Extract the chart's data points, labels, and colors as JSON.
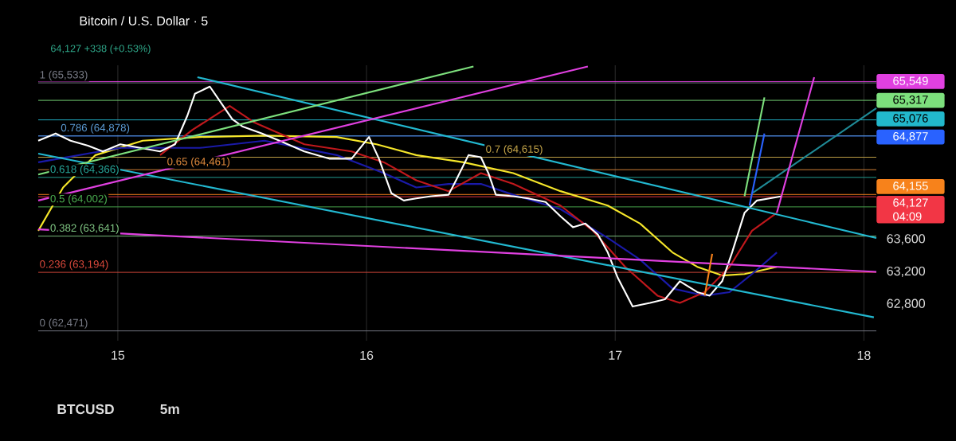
{
  "chart_data": {
    "type": "line",
    "title": "Bitcoin / U.S. Dollar · 5",
    "subtitle": "64,127 +338 (+0.53%)",
    "annotations": [
      "BTCUSD",
      "5m",
      "04:09"
    ],
    "xlim": [
      14.68,
      18.05
    ],
    "xticks": [
      15,
      16,
      17,
      18
    ],
    "ylim": [
      62350,
      65750
    ],
    "yticks": [
      {
        "value": 62800,
        "label": "62,800"
      },
      {
        "value": 63200,
        "label": "63,200"
      },
      {
        "value": 63600,
        "label": "63,600"
      }
    ],
    "grid": "x",
    "series": [
      {
        "color": "#f5e62a",
        "x": [
          14.68,
          14.78,
          14.91,
          15.1,
          15.33,
          15.59,
          15.88,
          16.04,
          16.2,
          16.39,
          16.59,
          16.78,
          16.97,
          17.1,
          17.23,
          17.33,
          17.43,
          17.52,
          17.65
        ],
        "values": [
          63707,
          64241,
          64641,
          64819,
          64864,
          64882,
          64864,
          64775,
          64641,
          64552,
          64419,
          64196,
          64018,
          63796,
          63440,
          63262,
          63155,
          63173,
          63262
        ]
      },
      {
        "color": "#1a1aa8",
        "x": [
          14.68,
          15.01,
          15.33,
          15.59,
          15.88,
          16.07,
          16.2,
          16.33,
          16.46,
          16.59,
          16.78,
          16.97,
          17.1,
          17.23,
          17.36,
          17.46,
          17.55,
          17.65
        ],
        "values": [
          64552,
          64730,
          64730,
          64819,
          64641,
          64419,
          64241,
          64285,
          64285,
          64152,
          63974,
          63618,
          63351,
          62995,
          62906,
          62950,
          63173,
          63440
        ]
      },
      {
        "color": "#c0181c",
        "x": [
          15.17,
          15.3,
          15.45,
          15.55,
          15.75,
          15.94,
          16.07,
          16.2,
          16.33,
          16.46,
          16.59,
          16.78,
          16.91,
          17.04,
          17.17,
          17.26,
          17.36,
          17.46,
          17.55,
          17.65
        ],
        "values": [
          64641,
          64953,
          65247,
          65042,
          64775,
          64686,
          64552,
          64330,
          64196,
          64419,
          64285,
          64018,
          63707,
          63262,
          62906,
          62817,
          62950,
          63262,
          63707,
          63929
        ]
      },
      {
        "color": "#ffffff",
        "x": [
          14.68,
          14.75,
          14.81,
          14.88,
          14.94,
          15.01,
          15.09,
          15.17,
          15.23,
          15.28,
          15.31,
          15.37,
          15.41,
          15.46,
          15.5,
          15.58,
          15.65,
          15.75,
          15.85,
          15.94,
          16.01,
          16.05,
          16.1,
          16.15,
          16.2,
          16.26,
          16.33,
          16.36,
          16.41,
          16.46,
          16.49,
          16.52,
          16.59,
          16.65,
          16.72,
          16.78,
          16.83,
          16.88,
          16.93,
          16.97,
          17.01,
          17.07,
          17.14,
          17.2,
          17.26,
          17.33,
          17.38,
          17.43,
          17.47,
          17.52,
          17.57,
          17.62,
          17.67
        ],
        "values": [
          64819,
          64908,
          64819,
          64757,
          64686,
          64775,
          64730,
          64686,
          64775,
          65131,
          65398,
          65487,
          65309,
          65086,
          64997,
          64908,
          64819,
          64686,
          64597,
          64597,
          64864,
          64597,
          64170,
          64081,
          64107,
          64134,
          64152,
          64330,
          64641,
          64615,
          64419,
          64152,
          64134,
          64107,
          64063,
          63885,
          63751,
          63796,
          63662,
          63440,
          63128,
          62772,
          62817,
          62861,
          63084,
          62950,
          62906,
          63084,
          63440,
          63929,
          64081,
          64107,
          64134
        ]
      },
      {
        "color": "#22b8d0",
        "x": [
          15.32,
          18.05
        ],
        "values": [
          65603,
          63618
        ]
      },
      {
        "color": "#22b8d0",
        "x": [
          14.68,
          18.04
        ],
        "values": [
          64659,
          62639
        ]
      },
      {
        "color": "#e040e0",
        "x": [
          14.68,
          18.05
        ],
        "values": [
          63725,
          63200
        ]
      },
      {
        "color": "#e040e0",
        "x": [
          14.68,
          16.89
        ],
        "values": [
          64081,
          65736
        ]
      },
      {
        "color": "#7de07d",
        "x": [
          14.68,
          16.43
        ],
        "values": [
          64401,
          65736
        ]
      },
      {
        "color": "#1f8a96",
        "x": [
          17.55,
          18.05
        ],
        "values": [
          64170,
          65220
        ]
      },
      {
        "color": "#7de07d",
        "x": [
          17.52,
          17.6
        ],
        "values": [
          64134,
          65353
        ]
      },
      {
        "color": "#2962ff",
        "x": [
          17.54,
          17.6
        ],
        "values": [
          64018,
          64908
        ]
      },
      {
        "color": "#e040e0",
        "x": [
          17.8,
          17.65
        ],
        "values": [
          65603,
          63929
        ]
      },
      {
        "color": "#f7821b",
        "x": [
          17.36,
          17.39
        ],
        "values": [
          62906,
          63422
        ]
      }
    ],
    "ref_lines": [
      {
        "axis": "y",
        "value": 65549,
        "label": "65,549",
        "color": "#e040e0"
      },
      {
        "axis": "y",
        "value": 65317,
        "label": "65,317",
        "color": "#7de07d"
      },
      {
        "axis": "y",
        "value": 65076,
        "label": "65,076",
        "color": "#22b8cc"
      },
      {
        "axis": "y",
        "value": 64877,
        "label": "64,877",
        "color": "#2962ff"
      },
      {
        "axis": "y",
        "value": 64155,
        "label": "64,155",
        "color": "#f7821b"
      },
      {
        "axis": "y",
        "value": 64127,
        "label": "64,127",
        "color": "#f23645"
      },
      {
        "axis": "y",
        "value": 65533,
        "label": "1 (65,533)",
        "color": "#787b86"
      },
      {
        "axis": "y",
        "value": 64878,
        "label": "0.786 (64,878)",
        "color": "#5b9bd5"
      },
      {
        "axis": "y",
        "value": 64615,
        "label": "0.7 (64,615)",
        "color": "#c8a84a"
      },
      {
        "axis": "y",
        "value": 64461,
        "label": "0.65 (64,461)",
        "color": "#e08a3c"
      },
      {
        "axis": "y",
        "value": 64366,
        "label": "0.618 (64,366)",
        "color": "#26a69a"
      },
      {
        "axis": "y",
        "value": 64002,
        "label": "0.5 (64,002)",
        "color": "#4caf50"
      },
      {
        "axis": "y",
        "value": 63641,
        "label": "0.382 (63,641)",
        "color": "#81c784"
      },
      {
        "axis": "y",
        "value": 63194,
        "label": "0.236 (63,194)",
        "color": "#d9483b"
      },
      {
        "axis": "y",
        "value": 62471,
        "label": "0 (62,471)",
        "color": "#787b86"
      }
    ]
  }
}
